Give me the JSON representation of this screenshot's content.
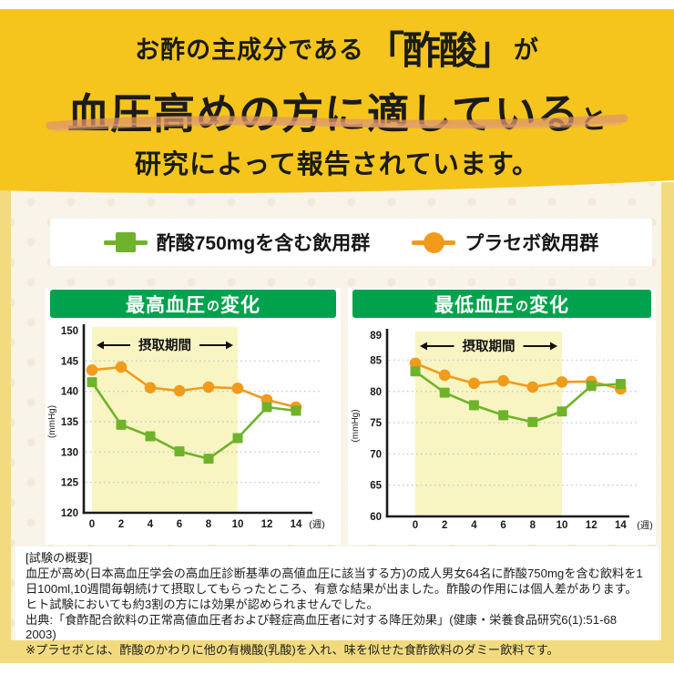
{
  "header": {
    "line1": {
      "prefix": "お酢の主成分である",
      "highlight": "「酢酸」",
      "suffix": "が"
    },
    "line2": {
      "main": "血圧高めの方に適している",
      "suffix": "と"
    },
    "line3": "研究によって報告されています。"
  },
  "legend": {
    "items": [
      {
        "label": "酢酸750mgを含む飲用群",
        "marker": "green-square",
        "color": "#6eb32b"
      },
      {
        "label": "プラセボ飲用群",
        "marker": "orange-circle",
        "color": "#f09b1c"
      }
    ]
  },
  "chart_data": [
    {
      "type": "line",
      "title": "最高血圧の変化",
      "title_parts": {
        "main": "最高血圧",
        "particle": "の",
        "tail": "変化"
      },
      "ylabel": "(mmHg)",
      "xlabel": "(週)",
      "x": [
        0,
        2,
        4,
        6,
        8,
        10,
        12,
        14
      ],
      "ylim": [
        120,
        150
      ],
      "yticks": [
        120,
        125,
        130,
        135,
        140,
        145,
        150
      ],
      "grid": "dotted-horizontal",
      "shaded_region": {
        "x_start": 0,
        "x_end": 10,
        "label": "摂取期間"
      },
      "series": [
        {
          "name": "プラセボ飲用群",
          "color": "#f09b1c",
          "marker": "circle",
          "values": [
            143.5,
            144.0,
            140.6,
            140.1,
            140.7,
            140.5,
            138.6,
            137.4
          ]
        },
        {
          "name": "酢酸750mgを含む飲用群",
          "color": "#6eb32b",
          "marker": "square",
          "values": [
            141.5,
            134.5,
            132.6,
            130.1,
            128.9,
            132.3,
            137.4,
            136.8
          ]
        }
      ]
    },
    {
      "type": "line",
      "title": "最低血圧の変化",
      "title_parts": {
        "main": "最低血圧",
        "particle": "の",
        "tail": "変化"
      },
      "ylabel": "(mmHg)",
      "xlabel": "(週)",
      "x": [
        0,
        2,
        4,
        6,
        8,
        10,
        12,
        14
      ],
      "ylim": [
        60,
        89
      ],
      "yticks": [
        60,
        65,
        70,
        75,
        80,
        85,
        89
      ],
      "grid": "dotted-horizontal",
      "shaded_region": {
        "x_start": 0,
        "x_end": 10,
        "label": "摂取期間"
      },
      "series": [
        {
          "name": "プラセボ飲用群",
          "color": "#f09b1c",
          "marker": "circle",
          "values": [
            84.5,
            82.6,
            81.3,
            81.7,
            80.7,
            81.5,
            81.6,
            80.4
          ]
        },
        {
          "name": "酢酸750mgを含む飲用群",
          "color": "#6eb32b",
          "marker": "square",
          "values": [
            83.2,
            79.8,
            77.8,
            76.2,
            75.1,
            76.8,
            80.9,
            81.2
          ]
        }
      ]
    }
  ],
  "footer": {
    "title": "[試験の概要]",
    "body": "血圧が高め(日本高血圧学会の高血圧診断基準の高値血圧に該当する方)の成人男女64名に酢酸750mgを含む飲料を1日100ml,10週間毎朝続けて摂取してもらったところ、有意な結果が出ました。酢酸の作用には個人差があります。ヒト試験においても約3割の方には効果が認められませんでした。",
    "source": "出典:「食酢配合飲料の正常高値血圧者および軽症高血圧者に対する降圧効果」(健康・栄養食品研究6(1):51-68 2003)",
    "note": "※プラセボとは、酢酸のかわりに他の有機酸(乳酸)を入れ、味を似せた食酢飲料のダミー飲料です。"
  },
  "colors": {
    "header_yellow": "#f5c51d",
    "frame_yellow": "#f2db7f",
    "body_cream": "#f9f4ea",
    "series_green": "#6eb32b",
    "series_orange": "#f09b1c",
    "title_bar_green": "#00a24d",
    "intake_shade": "#f8f5c2",
    "brush_underline": "#dd9668"
  }
}
